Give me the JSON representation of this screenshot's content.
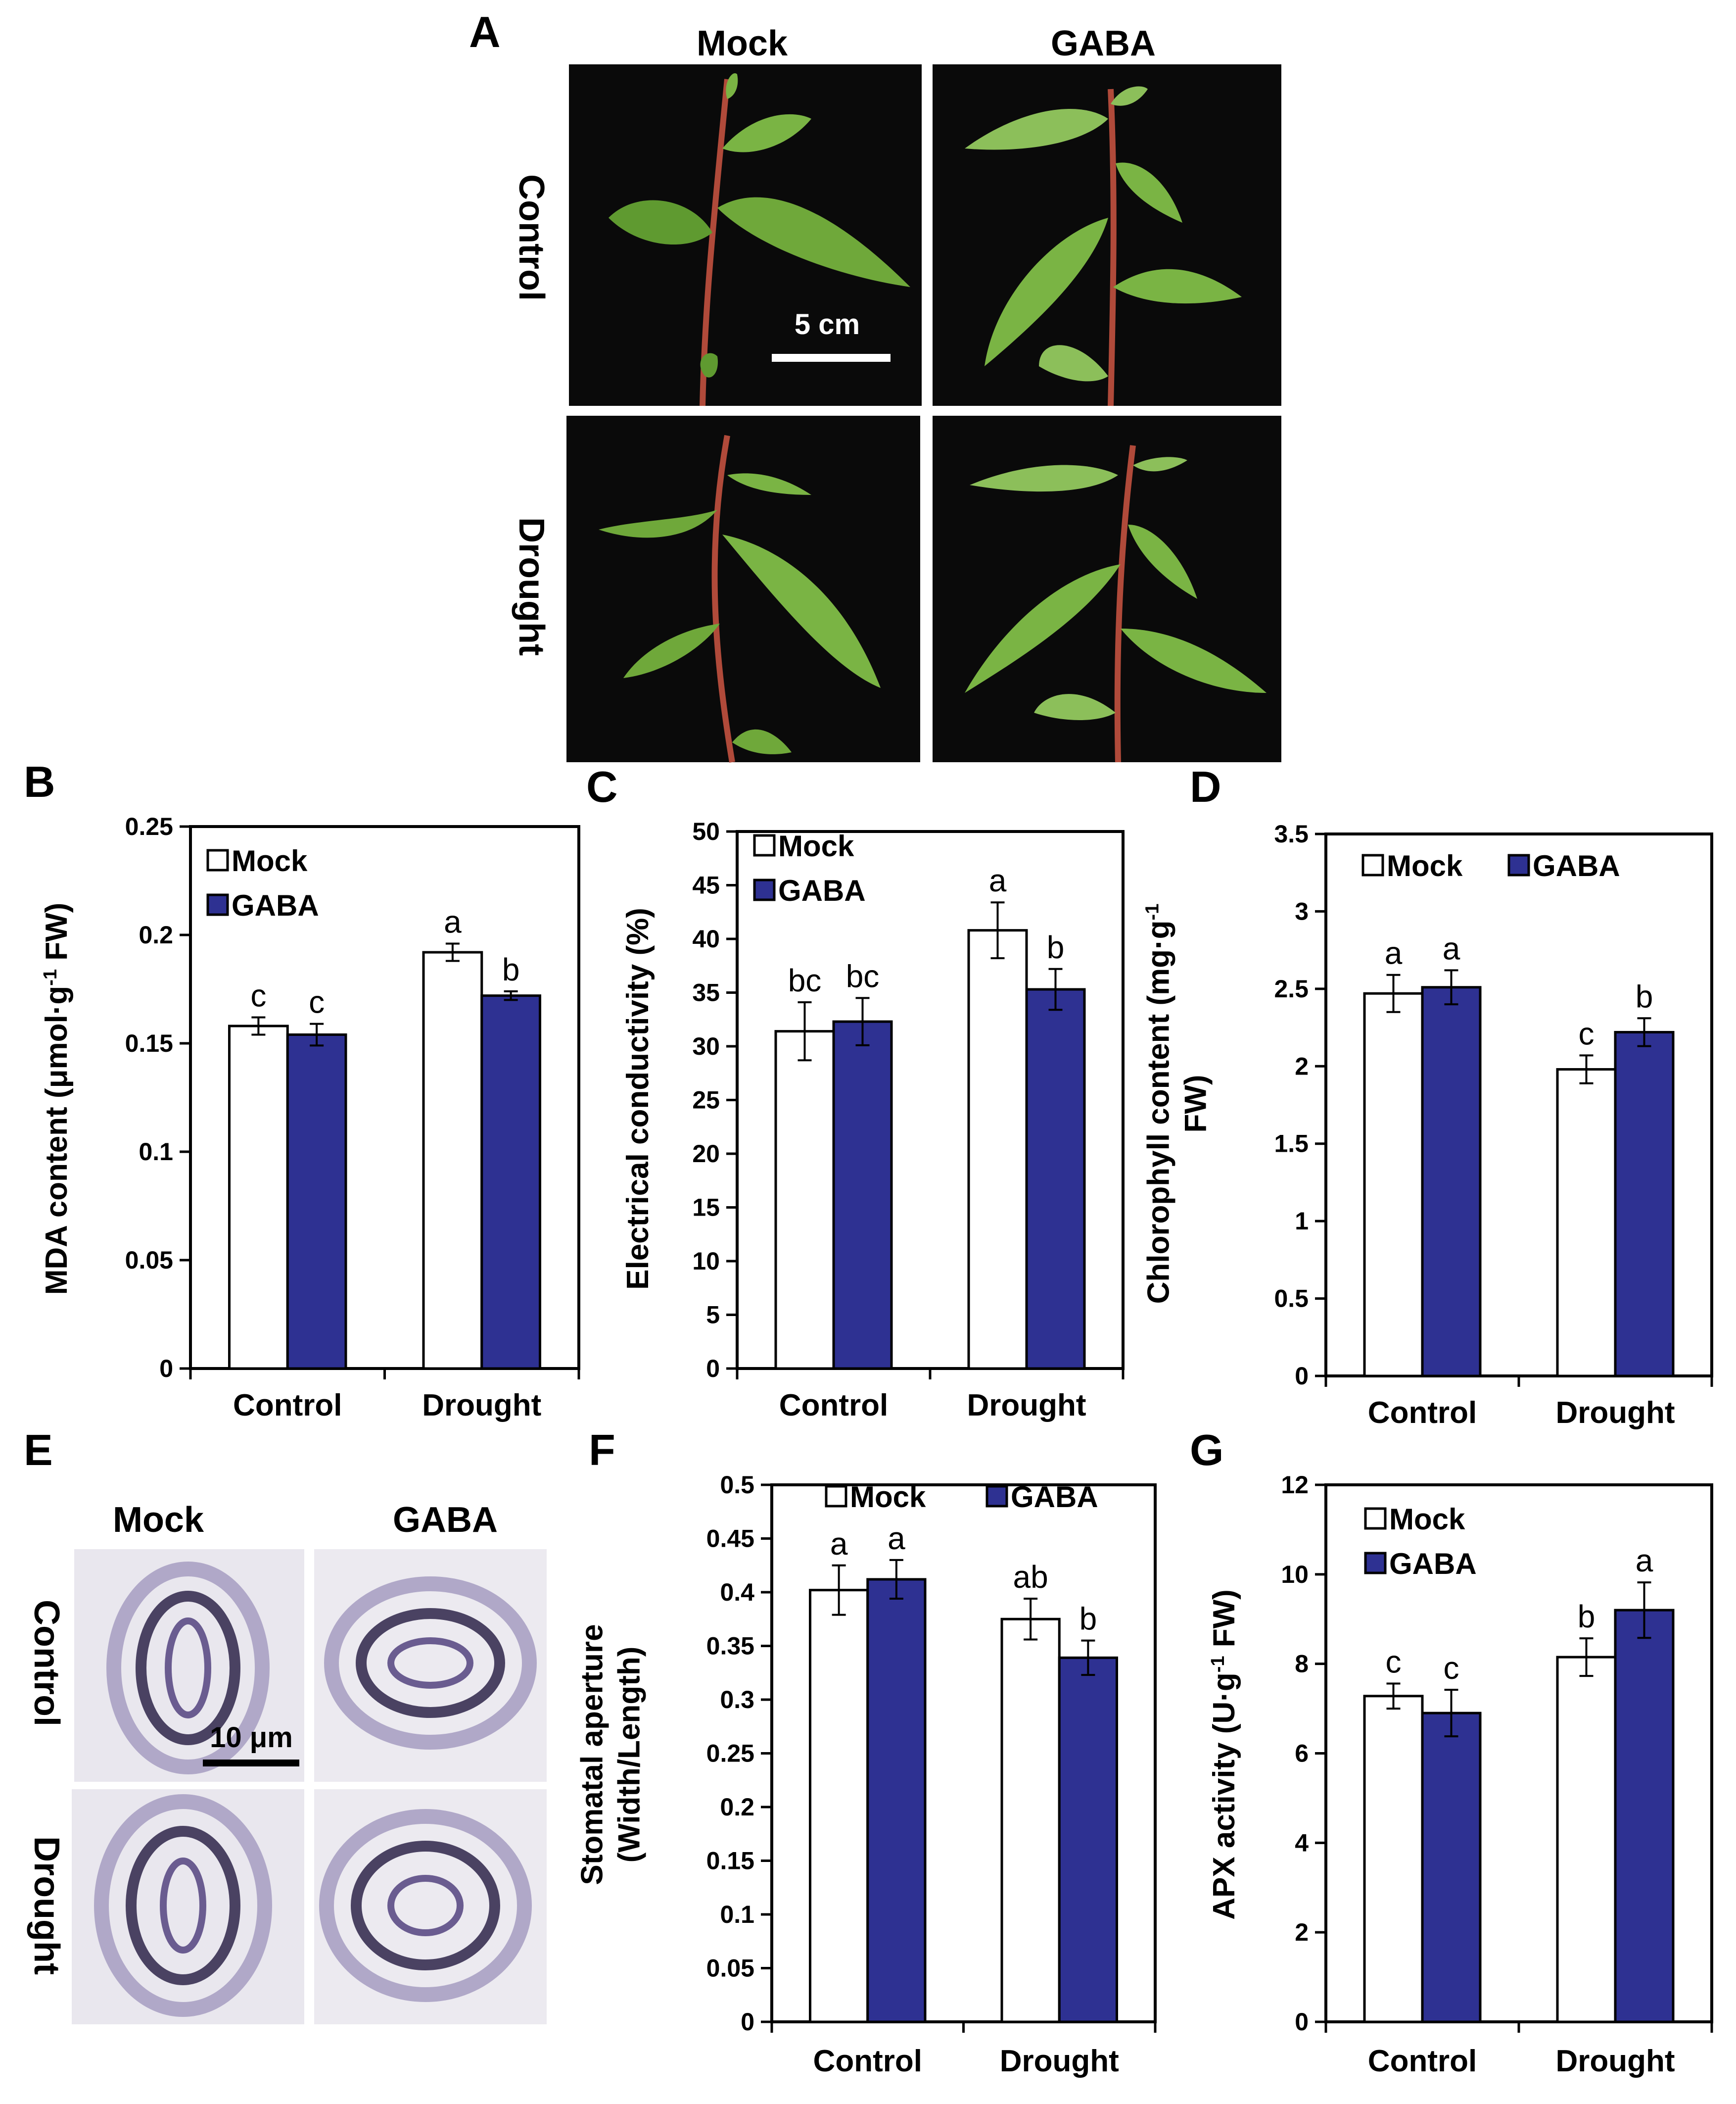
{
  "panel_letters": [
    "A",
    "B",
    "C",
    "D",
    "E",
    "F",
    "G"
  ],
  "photo_panel_A": {
    "col_headers": [
      "Mock",
      "GABA"
    ],
    "row_labels": [
      "Control",
      "Drought"
    ],
    "scale_bar": "5 cm"
  },
  "photo_panel_E": {
    "col_headers": [
      "Mock",
      "GABA"
    ],
    "row_labels": [
      "Control",
      "Drought"
    ],
    "scale_bar": "10 μm"
  },
  "colors": {
    "mock": "#ffffff",
    "gaba": "#2e3192",
    "axis": "#000000",
    "photo_bg": "#0a0a0a",
    "leaf": "#6fa83a"
  },
  "chart_data": [
    {
      "id": "B",
      "type": "bar",
      "categories": [
        "Control",
        "Drought"
      ],
      "series": [
        {
          "name": "Mock",
          "values": [
            0.158,
            0.192
          ],
          "errors": [
            0.004,
            0.004
          ],
          "letters": [
            "c",
            "a"
          ]
        },
        {
          "name": "GABA",
          "values": [
            0.154,
            0.172
          ],
          "errors": [
            0.005,
            0.002
          ],
          "letters": [
            "c",
            "b"
          ]
        }
      ],
      "ylabel": "MDA content (μmol·g-1 FW)",
      "ylim": [
        0,
        0.25
      ],
      "yticks": [
        0,
        0.05,
        0.1,
        0.15,
        0.2,
        0.25
      ],
      "ytick_labels": [
        "0",
        "0.05",
        "0.1",
        "0.15",
        "0.2",
        "0.25"
      ],
      "legend": "top-left"
    },
    {
      "id": "C",
      "type": "bar",
      "categories": [
        "Control",
        "Drought"
      ],
      "series": [
        {
          "name": "Mock",
          "values": [
            31.4,
            40.8
          ],
          "errors": [
            2.7,
            2.6
          ],
          "letters": [
            "bc",
            "a"
          ]
        },
        {
          "name": "GABA",
          "values": [
            32.3,
            35.3
          ],
          "errors": [
            2.2,
            1.9
          ],
          "letters": [
            "bc",
            "b"
          ]
        }
      ],
      "ylabel": "Electrical conductivity (%)",
      "ylim": [
        0,
        50
      ],
      "yticks": [
        0,
        5,
        10,
        15,
        20,
        25,
        30,
        35,
        40,
        45,
        50
      ],
      "ytick_labels": [
        "0",
        "5",
        "10",
        "15",
        "20",
        "25",
        "30",
        "35",
        "40",
        "45",
        "50"
      ],
      "legend": "top-left"
    },
    {
      "id": "D",
      "type": "bar",
      "categories": [
        "Control",
        "Drought"
      ],
      "series": [
        {
          "name": "Mock",
          "values": [
            2.47,
            1.98
          ],
          "errors": [
            0.12,
            0.09
          ],
          "letters": [
            "a",
            "c"
          ]
        },
        {
          "name": "GABA",
          "values": [
            2.51,
            2.22
          ],
          "errors": [
            0.11,
            0.09
          ],
          "letters": [
            "a",
            "b"
          ]
        }
      ],
      "ylabel": "Chlorophyll content (mg·g-1 FW)",
      "ylim": [
        0,
        3.5
      ],
      "yticks": [
        0,
        0.5,
        1,
        1.5,
        2,
        2.5,
        3,
        3.5
      ],
      "ytick_labels": [
        "0",
        "0.5",
        "1",
        "1.5",
        "2",
        "2.5",
        "3",
        "3.5"
      ],
      "legend": "top"
    },
    {
      "id": "F",
      "type": "bar",
      "categories": [
        "Control",
        "Drought"
      ],
      "series": [
        {
          "name": "Mock",
          "values": [
            0.402,
            0.375
          ],
          "errors": [
            0.023,
            0.019
          ],
          "letters": [
            "a",
            "ab"
          ]
        },
        {
          "name": "GABA",
          "values": [
            0.412,
            0.339
          ],
          "errors": [
            0.018,
            0.016
          ],
          "letters": [
            "a",
            "b"
          ]
        }
      ],
      "ylabel": "Stomatal aperture (Width/Length)",
      "ylim": [
        0,
        0.5
      ],
      "yticks": [
        0,
        0.05,
        0.1,
        0.15,
        0.2,
        0.25,
        0.3,
        0.35,
        0.4,
        0.45,
        0.5
      ],
      "ytick_labels": [
        "0",
        "0.05",
        "0.1",
        "0.15",
        "0.2",
        "0.25",
        "0.3",
        "0.35",
        "0.4",
        "0.45",
        "0.5"
      ],
      "legend": "top"
    },
    {
      "id": "G",
      "type": "bar",
      "categories": [
        "Control",
        "Drought"
      ],
      "series": [
        {
          "name": "Mock",
          "values": [
            7.28,
            8.15
          ],
          "errors": [
            0.28,
            0.42
          ],
          "letters": [
            "c",
            "b"
          ]
        },
        {
          "name": "GABA",
          "values": [
            6.9,
            9.2
          ],
          "errors": [
            0.52,
            0.62
          ],
          "letters": [
            "c",
            "a"
          ]
        }
      ],
      "ylabel": "APX activity (U·g-1 FW)",
      "ylim": [
        0,
        12
      ],
      "yticks": [
        0,
        2,
        4,
        6,
        8,
        10,
        12
      ],
      "ytick_labels": [
        "0",
        "2",
        "4",
        "6",
        "8",
        "10",
        "12"
      ],
      "legend": "top-left"
    }
  ]
}
